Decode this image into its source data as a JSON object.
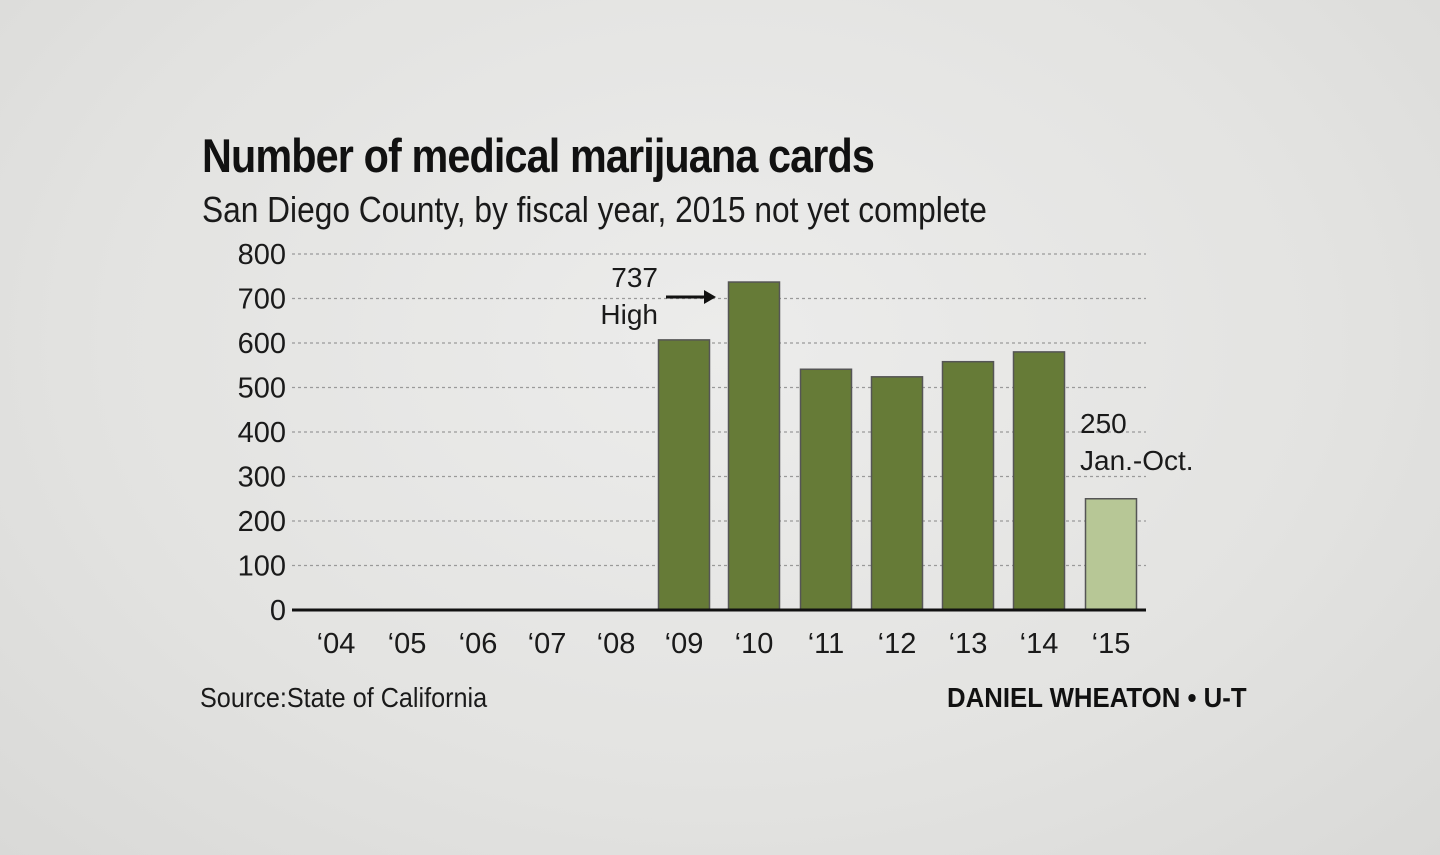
{
  "chart_data": {
    "type": "bar",
    "title": "Number of medical marijuana cards",
    "subtitle": "San Diego County, by fiscal year, 2015 not yet complete",
    "categories": [
      "‘04",
      "‘05",
      "‘06",
      "‘07",
      "‘08",
      "‘09",
      "‘10",
      "‘11",
      "‘12",
      "‘13",
      "‘14",
      "‘15"
    ],
    "values": [
      0,
      0,
      0,
      0,
      0,
      607,
      737,
      541,
      524,
      558,
      580,
      250
    ],
    "ylim": [
      0,
      800
    ],
    "yticks": [
      0,
      100,
      200,
      300,
      400,
      500,
      600,
      700,
      800
    ],
    "grid": true,
    "colors": {
      "bar": "#667b37",
      "bar_partial": "#b7c796",
      "bar_stroke": "#555555",
      "grid": "#9a9a9a",
      "axis": "#111111"
    },
    "annotations": [
      {
        "category": "‘10",
        "value_label": "737",
        "note": "High"
      },
      {
        "category": "‘15",
        "value_label": "250",
        "note": "Jan.-Oct."
      }
    ]
  },
  "footer": {
    "source": "Source:State of California",
    "credit": "DANIEL WHEATON • U-T"
  }
}
